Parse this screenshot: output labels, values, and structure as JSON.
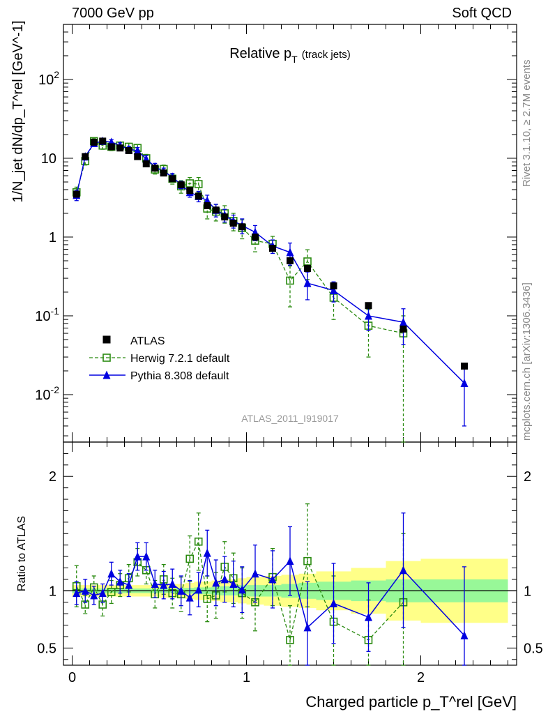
{
  "header": {
    "left": "7000 GeV pp",
    "right": "Soft QCD",
    "side_top": "Rivet 3.1.10, ≥ 2.7M events",
    "side_bottom": "mcplots.cern.ch [arXiv:1306.3436]"
  },
  "colors": {
    "atlas": "#000000",
    "herwig": "#2a8a10",
    "pythia": "#0000e0",
    "band_inner": "#98f898",
    "band_outer": "#ffff88",
    "analysis_tag": "#999999"
  },
  "chart_data": [
    {
      "type": "scatter",
      "title": "Relative p_T (track jets)",
      "title_main": "Relative p",
      "title_sub": "T",
      "title_suffix": "(track jets)",
      "analysis_tag": "ATLAS_2011_I919017",
      "ylabel": "1/N_jet dN/dp_T^rel [GeV^-1]",
      "yscale": "log",
      "ylim": [
        0.0025,
        500
      ],
      "xlim": [
        -0.05,
        2.55
      ],
      "legend_placement": "lower-left",
      "ytick_labels": [
        "10^-2",
        "10^-1",
        "1",
        "10",
        "10^2"
      ],
      "series": [
        {
          "name": "ATLAS",
          "marker": "square-filled",
          "x": [
            0.025,
            0.075,
            0.125,
            0.175,
            0.225,
            0.275,
            0.325,
            0.375,
            0.425,
            0.475,
            0.525,
            0.575,
            0.625,
            0.675,
            0.725,
            0.775,
            0.825,
            0.875,
            0.925,
            0.975,
            1.05,
            1.15,
            1.25,
            1.35,
            1.5,
            1.7,
            1.9,
            2.25
          ],
          "y": [
            3.5,
            10.5,
            16.0,
            16.5,
            14.0,
            13.5,
            12.5,
            10.5,
            8.5,
            7.5,
            6.5,
            5.5,
            4.6,
            3.9,
            3.3,
            2.5,
            2.2,
            1.8,
            1.5,
            1.35,
            1.0,
            0.72,
            0.5,
            0.4,
            0.24,
            0.135,
            0.068,
            0.023
          ]
        },
        {
          "name": "Herwig 7.2.1 default",
          "marker": "square-open",
          "line": "dashed",
          "x": [
            0.025,
            0.075,
            0.125,
            0.175,
            0.225,
            0.275,
            0.325,
            0.375,
            0.425,
            0.475,
            0.525,
            0.575,
            0.625,
            0.675,
            0.725,
            0.775,
            0.825,
            0.875,
            0.925,
            0.975,
            1.05,
            1.15,
            1.25,
            1.35,
            1.5,
            1.7,
            1.9
          ],
          "y": [
            3.7,
            9.2,
            16.5,
            14.5,
            14.0,
            14.5,
            14.0,
            13.5,
            10.0,
            7.2,
            7.3,
            5.5,
            4.4,
            4.8,
            4.7,
            2.3,
            2.1,
            2.0,
            1.6,
            1.3,
            0.9,
            0.82,
            0.28,
            0.49,
            0.17,
            0.075,
            0.06
          ],
          "err_lo": [
            0.6,
            1.0,
            1.5,
            1.5,
            1.5,
            1.5,
            1.5,
            1.5,
            1.2,
            0.9,
            0.9,
            0.8,
            0.8,
            0.9,
            1.0,
            0.6,
            0.5,
            0.5,
            0.4,
            0.35,
            0.25,
            0.2,
            0.15,
            0.2,
            0.08,
            0.045,
            0.06
          ],
          "err_hi": [
            0.6,
            1.0,
            1.5,
            1.5,
            1.5,
            1.5,
            1.5,
            1.5,
            1.2,
            0.9,
            0.9,
            0.8,
            0.8,
            0.9,
            1.0,
            0.6,
            0.5,
            0.5,
            0.4,
            0.35,
            0.25,
            0.2,
            0.15,
            0.2,
            0.08,
            0.045,
            0.04
          ]
        },
        {
          "name": "Pythia 8.308 default",
          "marker": "triangle-filled",
          "line": "solid",
          "x": [
            0.025,
            0.075,
            0.125,
            0.175,
            0.225,
            0.275,
            0.325,
            0.375,
            0.425,
            0.475,
            0.525,
            0.575,
            0.625,
            0.675,
            0.725,
            0.775,
            0.825,
            0.875,
            0.925,
            0.975,
            1.05,
            1.15,
            1.25,
            1.35,
            1.5,
            1.7,
            1.9,
            2.25
          ],
          "y": [
            3.4,
            10.5,
            15.5,
            16.5,
            16.0,
            14.5,
            13.0,
            12.5,
            9.8,
            7.8,
            6.8,
            5.8,
            4.6,
            3.7,
            3.3,
            2.9,
            2.2,
            1.9,
            1.6,
            1.4,
            1.15,
            0.77,
            0.64,
            0.26,
            0.21,
            0.1,
            0.083,
            0.014
          ],
          "err_lo": [
            0.5,
            1.0,
            1.2,
            1.2,
            1.2,
            1.2,
            1.2,
            1.2,
            1.0,
            0.8,
            0.7,
            0.6,
            0.5,
            0.5,
            0.5,
            0.5,
            0.4,
            0.35,
            0.3,
            0.3,
            0.25,
            0.15,
            0.2,
            0.1,
            0.06,
            0.035,
            0.04,
            0.01
          ],
          "err_hi": [
            0.5,
            1.0,
            1.2,
            1.2,
            1.2,
            1.2,
            1.2,
            1.2,
            1.0,
            0.8,
            0.7,
            0.6,
            0.5,
            0.5,
            0.5,
            0.5,
            0.4,
            0.35,
            0.3,
            0.3,
            0.25,
            0.15,
            0.2,
            0.1,
            0.06,
            0.035,
            0.04,
            0.01
          ]
        }
      ]
    },
    {
      "type": "scatter",
      "ylabel": "Ratio to ATLAS",
      "xlabel": "Charged particle p_T^rel [GeV]",
      "ylim": [
        0.35,
        2.3
      ],
      "xlim": [
        -0.05,
        2.55
      ],
      "reference_line": 1,
      "xtick_labels": [
        "0",
        "1",
        "2"
      ],
      "ytick_labels": [
        "0.5",
        "1",
        "2"
      ],
      "band_edges": [
        0,
        0.05,
        0.1,
        0.15,
        0.2,
        0.25,
        0.3,
        0.35,
        0.4,
        0.45,
        0.5,
        0.55,
        0.6,
        0.65,
        0.7,
        0.75,
        0.8,
        0.85,
        0.9,
        0.95,
        1.0,
        1.1,
        1.2,
        1.3,
        1.4,
        1.6,
        1.8,
        2.0,
        2.5
      ],
      "band_inner_half": [
        0.02,
        0.02,
        0.02,
        0.02,
        0.02,
        0.02,
        0.02,
        0.02,
        0.02,
        0.02,
        0.02,
        0.02,
        0.025,
        0.025,
        0.03,
        0.03,
        0.035,
        0.04,
        0.04,
        0.05,
        0.05,
        0.05,
        0.06,
        0.07,
        0.08,
        0.09,
        0.1,
        0.1
      ],
      "band_outer_half": [
        0.05,
        0.05,
        0.05,
        0.05,
        0.05,
        0.05,
        0.05,
        0.05,
        0.05,
        0.05,
        0.06,
        0.06,
        0.06,
        0.07,
        0.08,
        0.08,
        0.09,
        0.1,
        0.1,
        0.11,
        0.12,
        0.13,
        0.14,
        0.15,
        0.17,
        0.2,
        0.26,
        0.28
      ],
      "series": [
        {
          "name": "Herwig 7.2.1 default",
          "x": [
            0.025,
            0.075,
            0.125,
            0.175,
            0.225,
            0.275,
            0.325,
            0.375,
            0.425,
            0.475,
            0.525,
            0.575,
            0.625,
            0.675,
            0.725,
            0.775,
            0.825,
            0.875,
            0.925,
            0.975,
            1.05,
            1.15,
            1.25,
            1.35,
            1.5,
            1.7,
            1.9
          ],
          "y": [
            1.04,
            0.88,
            1.03,
            0.88,
            0.99,
            1.05,
            1.11,
            1.25,
            1.18,
            0.97,
            1.1,
            0.98,
            0.97,
            1.28,
            1.43,
            0.93,
            0.96,
            1.21,
            1.11,
            0.98,
            0.9,
            1.12,
            0.57,
            1.26,
            0.73,
            0.57,
            0.9
          ],
          "err_lo": [
            0.18,
            0.08,
            0.1,
            0.1,
            0.1,
            0.1,
            0.12,
            0.12,
            0.12,
            0.12,
            0.13,
            0.13,
            0.15,
            0.2,
            0.25,
            0.2,
            0.2,
            0.22,
            0.22,
            0.22,
            0.25,
            0.25,
            0.3,
            0.4,
            0.4,
            0.35,
            0.6
          ],
          "err_hi": [
            0.18,
            0.08,
            0.1,
            0.1,
            0.1,
            0.1,
            0.12,
            0.12,
            0.12,
            0.12,
            0.13,
            0.13,
            0.15,
            0.2,
            0.25,
            0.2,
            0.2,
            0.22,
            0.22,
            0.22,
            0.25,
            0.25,
            0.3,
            0.5,
            0.4,
            0.35,
            0.6
          ]
        },
        {
          "name": "Pythia 8.308 default",
          "x": [
            0.025,
            0.075,
            0.125,
            0.175,
            0.225,
            0.275,
            0.325,
            0.375,
            0.425,
            0.475,
            0.525,
            0.575,
            0.625,
            0.675,
            0.725,
            0.775,
            0.825,
            0.875,
            0.925,
            0.975,
            1.05,
            1.15,
            1.25,
            1.35,
            1.5,
            1.7,
            1.9,
            2.25
          ],
          "y": [
            0.98,
            1.0,
            0.96,
            0.98,
            1.15,
            1.08,
            1.05,
            1.3,
            1.3,
            1.06,
            1.05,
            1.06,
            1.0,
            0.94,
            1.01,
            1.33,
            1.07,
            1.1,
            1.06,
            1.01,
            1.15,
            1.1,
            1.26,
            0.68,
            0.89,
            0.77,
            1.18,
            0.61
          ],
          "err_lo": [
            0.1,
            0.1,
            0.08,
            0.08,
            0.1,
            0.1,
            0.1,
            0.12,
            0.12,
            0.12,
            0.12,
            0.13,
            0.13,
            0.15,
            0.15,
            0.2,
            0.2,
            0.2,
            0.2,
            0.2,
            0.25,
            0.25,
            0.3,
            0.4,
            0.35,
            0.3,
            0.5,
            0.6
          ],
          "err_hi": [
            0.1,
            0.1,
            0.08,
            0.08,
            0.1,
            0.1,
            0.1,
            0.12,
            0.12,
            0.12,
            0.12,
            0.13,
            0.13,
            0.15,
            0.15,
            0.2,
            0.2,
            0.2,
            0.2,
            0.2,
            0.25,
            0.25,
            0.3,
            0.4,
            0.35,
            0.3,
            0.5,
            0.6
          ]
        }
      ]
    }
  ]
}
